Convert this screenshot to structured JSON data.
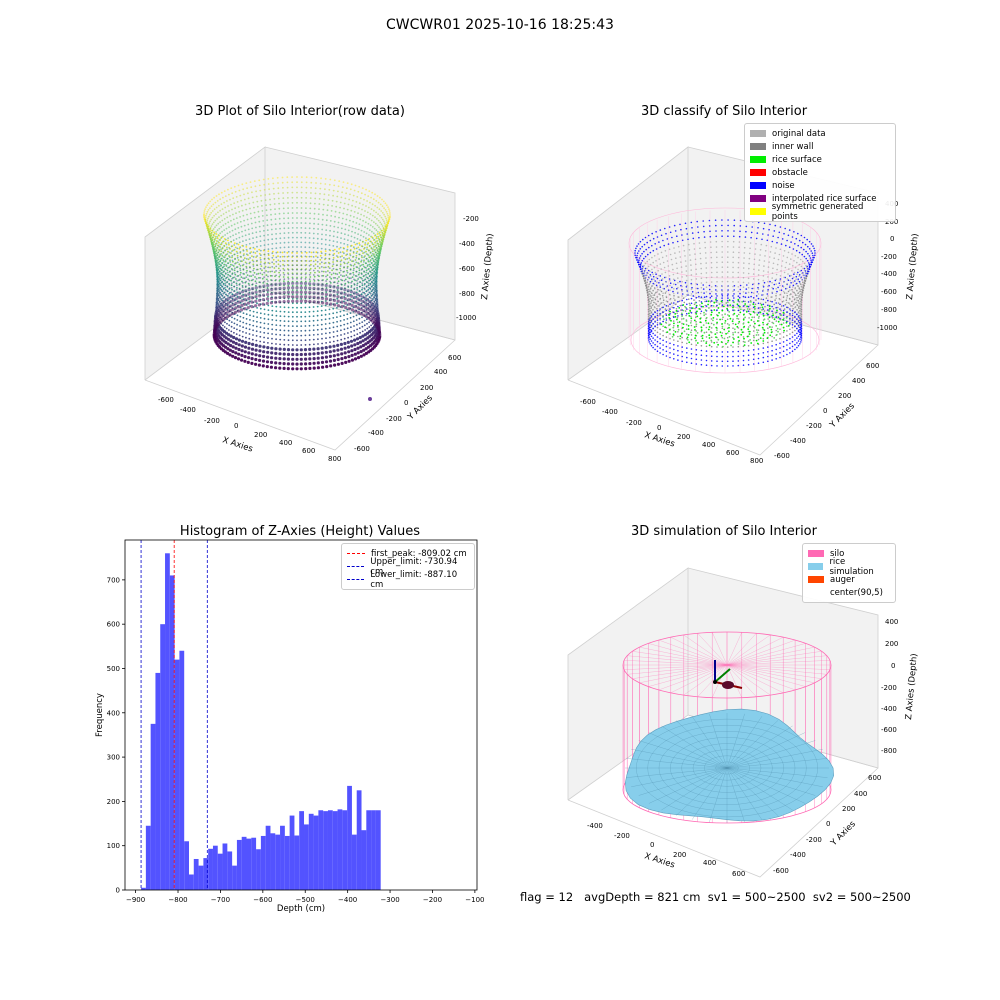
{
  "suptitle": "CWCWR01 2025-10-16 18:25:43",
  "status_line": "flag = 12   avgDepth = 821 cm  sv1 = 500~2500  sv2 = 500~2500",
  "chart_data": [
    {
      "type": "scatter3d",
      "title": "3D Plot of Silo Interior(row data)",
      "xlabel": "X Axies",
      "ylabel": "Y Axies",
      "zlabel": "Z Axies (Depth)",
      "xticks": [
        "-600",
        "-400",
        "-200",
        "0",
        "200",
        "400",
        "600",
        "800"
      ],
      "yticks": [
        "600",
        "400",
        "200",
        "0",
        "-200",
        "-400",
        "-600"
      ],
      "zticks": [
        "-200",
        "-400",
        "-600",
        "-800",
        "-1000"
      ],
      "colormap": "viridis",
      "colors": [
        "#440154",
        "#3b528b",
        "#21918c",
        "#5ec962",
        "#fde725"
      ]
    },
    {
      "type": "scatter3d",
      "title": "3D classify of Silo Interior",
      "xlabel": "X Axies",
      "ylabel": "Y Axies",
      "zlabel": "Z Axies (Depth)",
      "xticks": [
        "-600",
        "-400",
        "-200",
        "0",
        "200",
        "400",
        "600",
        "800"
      ],
      "yticks": [
        "600",
        "400",
        "200",
        "0",
        "-200",
        "-400",
        "-600"
      ],
      "zticks": [
        "400",
        "200",
        "0",
        "-200",
        "-400",
        "-600",
        "-800",
        "-1000"
      ],
      "legend_position": "top-right",
      "legend": [
        {
          "label": "original data",
          "color": "#b0b0b0"
        },
        {
          "label": "inner wall",
          "color": "#808080"
        },
        {
          "label": "rice surface",
          "color": "#00ee00"
        },
        {
          "label": "obstacle",
          "color": "#ff0000"
        },
        {
          "label": "noise",
          "color": "#0000ff"
        },
        {
          "label": "interpolated rice surface",
          "color": "#800080"
        },
        {
          "label": "symmetric generated points",
          "color": "#ffff00"
        }
      ]
    },
    {
      "type": "bar",
      "title": "Histogram of Z-Axies (Height) Values",
      "xlabel": "Depth (cm)",
      "ylabel": "Frequency",
      "xlim": [
        -925,
        -95
      ],
      "ylim": [
        0,
        790
      ],
      "xticks": [
        -900,
        -800,
        -700,
        -600,
        -500,
        -400,
        -300,
        -200,
        -100
      ],
      "yticks": [
        0,
        100,
        200,
        300,
        400,
        500,
        600,
        700
      ],
      "bar_color": "#4a4aff",
      "bin_start": -887.1,
      "bin_width": 11.3,
      "values": [
        5,
        145,
        375,
        490,
        600,
        760,
        710,
        520,
        540,
        110,
        35,
        70,
        55,
        72,
        93,
        100,
        82,
        105,
        87,
        55,
        113,
        120,
        116,
        118,
        92,
        122,
        145,
        128,
        125,
        145,
        122,
        168,
        123,
        178,
        148,
        172,
        168,
        180,
        178,
        180,
        178,
        182,
        180,
        235,
        125,
        225,
        135,
        180,
        180,
        180
      ],
      "vlines": [
        {
          "label": "first_peak: -809.02 cm",
          "x": -809.02,
          "color": "#ff0000"
        },
        {
          "label": "Upper_limit: -730.94 cm",
          "x": -730.94,
          "color": "#0000cc"
        },
        {
          "label": "Lower_limit: -887.10 cm",
          "x": -887.1,
          "color": "#0000cc"
        }
      ],
      "legend_position": "top-right"
    },
    {
      "type": "surface3d",
      "title": "3D simulation of Silo Interior",
      "xlabel": "X Axies",
      "ylabel": "Y Axies",
      "zlabel": "Z Axies (Depth)",
      "xticks": [
        "-400",
        "-200",
        "0",
        "200",
        "400",
        "600"
      ],
      "yticks": [
        "600",
        "400",
        "200",
        "0",
        "-200",
        "-400",
        "-600"
      ],
      "zticks": [
        "400",
        "200",
        "0",
        "-200",
        "-400",
        "-600",
        "-800"
      ],
      "legend_position": "top-right",
      "legend": [
        {
          "label": "silo",
          "color": "#ff69b4"
        },
        {
          "label": "rice simulation",
          "color": "#87ceeb"
        },
        {
          "label": "auger",
          "color": "#ff4500"
        },
        {
          "label": "center(90,5)",
          "color": "#ffffff"
        }
      ]
    }
  ]
}
